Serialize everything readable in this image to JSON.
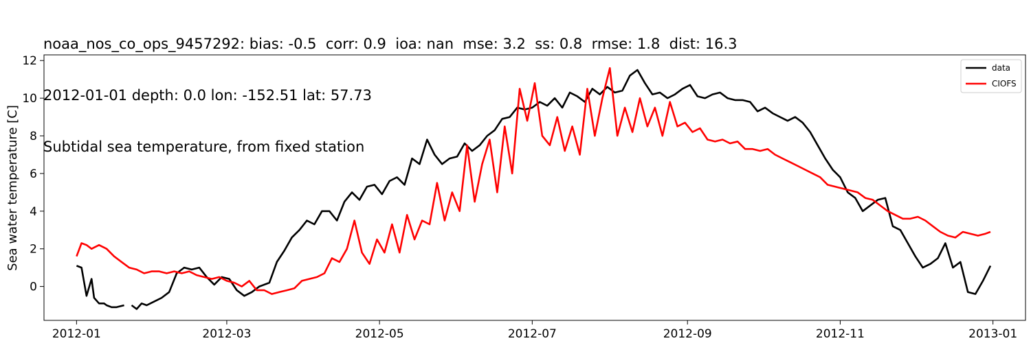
{
  "title_lines": [
    "noaa_nos_co_ops_9457292: bias: -0.5  corr: 0.9  ioa: nan  mse: 3.2  ss: 0.8  rmse: 1.8  dist: 16.3",
    "2012-01-01 depth: 0.0 lon: -152.51 lat: 57.73",
    "Subtidal sea temperature, from fixed station"
  ],
  "chart_data": {
    "type": "line",
    "title": "noaa_nos_co_ops_9457292: bias: -0.5  corr: 0.9  ioa: nan  mse: 3.2  ss: 0.8  rmse: 1.8  dist: 16.3",
    "subtitle": "2012-01-01 depth: 0.0 lon: -152.51 lat: 57.73 — Subtidal sea temperature, from fixed station",
    "xlabel": "",
    "ylabel": "Sea water temperature [C]",
    "xlim": [
      "2011-12-19",
      "2013-01-14"
    ],
    "ylim": [
      -1.8,
      12.3
    ],
    "x_ticks": [
      "2012-01",
      "2012-03",
      "2012-05",
      "2012-07",
      "2012-09",
      "2012-11",
      "2013-01"
    ],
    "y_ticks": [
      0,
      2,
      4,
      6,
      8,
      10,
      12
    ],
    "grid": false,
    "legend": {
      "position": "top-right",
      "entries": [
        "data",
        "CIOFS"
      ]
    },
    "series": [
      {
        "name": "data",
        "color": "#000000",
        "x": [
          "2012-01-01",
          "2012-01-03",
          "2012-01-05",
          "2012-01-07",
          "2012-01-08",
          "2012-01-10",
          "2012-01-12",
          "2012-01-13",
          "2012-01-15",
          "2012-01-17",
          "2012-01-20",
          null,
          "2012-01-23",
          "2012-01-25",
          "2012-01-27",
          "2012-01-29",
          "2012-02-01",
          "2012-02-04",
          "2012-02-07",
          "2012-02-10",
          "2012-02-13",
          "2012-02-16",
          "2012-02-19",
          "2012-02-22",
          "2012-02-25",
          "2012-02-28",
          "2012-03-02",
          "2012-03-05",
          "2012-03-08",
          "2012-03-11",
          "2012-03-14",
          "2012-03-18",
          "2012-03-21",
          "2012-03-24",
          "2012-03-27",
          "2012-03-30",
          "2012-04-02",
          "2012-04-05",
          "2012-04-08",
          "2012-04-11",
          "2012-04-14",
          "2012-04-17",
          "2012-04-20",
          "2012-04-23",
          "2012-04-26",
          "2012-04-29",
          "2012-05-02",
          "2012-05-05",
          "2012-05-08",
          "2012-05-11",
          "2012-05-14",
          "2012-05-17",
          "2012-05-20",
          "2012-05-23",
          "2012-05-26",
          "2012-05-29",
          "2012-06-01",
          "2012-06-04",
          "2012-06-07",
          "2012-06-10",
          "2012-06-13",
          "2012-06-16",
          "2012-06-19",
          "2012-06-22",
          "2012-06-25",
          "2012-06-28",
          "2012-07-01",
          "2012-07-04",
          "2012-07-07",
          "2012-07-10",
          "2012-07-13",
          "2012-07-16",
          "2012-07-19",
          "2012-07-22",
          "2012-07-25",
          "2012-07-28",
          "2012-07-31",
          "2012-08-03",
          "2012-08-06",
          "2012-08-09",
          "2012-08-12",
          "2012-08-15",
          "2012-08-18",
          "2012-08-21",
          "2012-08-24",
          "2012-08-27",
          "2012-08-30",
          "2012-09-02",
          "2012-09-05",
          "2012-09-08",
          "2012-09-11",
          "2012-09-14",
          "2012-09-17",
          "2012-09-20",
          "2012-09-23",
          "2012-09-26",
          "2012-09-29",
          "2012-10-02",
          "2012-10-05",
          "2012-10-08",
          "2012-10-11",
          "2012-10-14",
          "2012-10-17",
          "2012-10-20",
          "2012-10-23",
          "2012-10-26",
          "2012-10-29",
          "2012-11-01",
          "2012-11-04",
          "2012-11-07",
          "2012-11-10",
          "2012-11-13",
          "2012-11-16",
          "2012-11-19",
          "2012-11-22",
          "2012-11-25",
          "2012-11-28",
          "2012-12-01",
          "2012-12-04",
          "2012-12-07",
          "2012-12-10",
          "2012-12-13",
          "2012-12-16",
          "2012-12-19",
          "2012-12-22",
          "2012-12-25",
          "2012-12-28",
          "2012-12-31"
        ],
        "y": [
          1.1,
          1.0,
          -0.5,
          0.4,
          -0.6,
          -0.9,
          -0.9,
          -1.0,
          -1.1,
          -1.1,
          -1.0,
          null,
          -1.0,
          -1.2,
          -0.9,
          -1.0,
          -0.8,
          -0.6,
          -0.3,
          0.7,
          1.0,
          0.9,
          1.0,
          0.5,
          0.1,
          0.5,
          0.4,
          -0.2,
          -0.5,
          -0.3,
          0.0,
          0.2,
          1.3,
          1.9,
          2.6,
          3.0,
          3.5,
          3.3,
          4.0,
          4.0,
          3.5,
          4.5,
          5.0,
          4.6,
          5.3,
          5.4,
          4.9,
          5.6,
          5.8,
          5.4,
          6.8,
          6.5,
          7.8,
          7.0,
          6.5,
          6.8,
          6.9,
          7.6,
          7.2,
          7.5,
          8.0,
          8.3,
          8.9,
          9.0,
          9.5,
          9.4,
          9.5,
          9.8,
          9.6,
          10.0,
          9.5,
          10.3,
          10.1,
          9.8,
          10.5,
          10.2,
          10.6,
          10.3,
          10.4,
          11.2,
          11.5,
          10.8,
          10.2,
          10.3,
          10.0,
          10.2,
          10.5,
          10.7,
          10.1,
          10.0,
          10.2,
          10.3,
          10.0,
          9.9,
          9.9,
          9.8,
          9.3,
          9.5,
          9.2,
          9.0,
          8.8,
          9.0,
          8.7,
          8.2,
          7.5,
          6.8,
          6.2,
          5.8,
          5.0,
          4.7,
          4.0,
          4.3,
          4.6,
          4.7,
          3.2,
          3.0,
          2.3,
          1.6,
          1.0,
          1.2,
          1.5,
          2.3,
          1.0,
          1.3,
          -0.3,
          -0.4,
          0.3,
          1.1
        ]
      },
      {
        "name": "CIOFS",
        "color": "#ff0000",
        "x": [
          "2012-01-01",
          "2012-01-03",
          "2012-01-05",
          "2012-01-07",
          "2012-01-10",
          "2012-01-13",
          "2012-01-16",
          "2012-01-19",
          "2012-01-22",
          "2012-01-25",
          "2012-01-28",
          "2012-01-31",
          "2012-02-03",
          "2012-02-06",
          "2012-02-09",
          "2012-02-12",
          "2012-02-15",
          "2012-02-18",
          "2012-02-21",
          "2012-02-24",
          "2012-02-27",
          "2012-03-01",
          "2012-03-04",
          "2012-03-07",
          "2012-03-10",
          "2012-03-13",
          "2012-03-16",
          "2012-03-19",
          "2012-03-22",
          "2012-03-25",
          "2012-03-28",
          "2012-03-31",
          "2012-04-03",
          "2012-04-06",
          "2012-04-09",
          "2012-04-12",
          "2012-04-15",
          "2012-04-18",
          "2012-04-21",
          "2012-04-24",
          "2012-04-27",
          "2012-04-30",
          "2012-05-03",
          "2012-05-06",
          "2012-05-09",
          "2012-05-12",
          "2012-05-15",
          "2012-05-18",
          "2012-05-21",
          "2012-05-24",
          "2012-05-27",
          "2012-05-30",
          "2012-06-02",
          "2012-06-05",
          "2012-06-08",
          "2012-06-11",
          "2012-06-14",
          "2012-06-17",
          "2012-06-20",
          "2012-06-23",
          "2012-06-26",
          "2012-06-29",
          "2012-07-02",
          "2012-07-05",
          "2012-07-08",
          "2012-07-11",
          "2012-07-14",
          "2012-07-17",
          "2012-07-20",
          "2012-07-23",
          "2012-07-26",
          "2012-07-29",
          "2012-08-01",
          "2012-08-04",
          "2012-08-07",
          "2012-08-10",
          "2012-08-13",
          "2012-08-16",
          "2012-08-19",
          "2012-08-22",
          "2012-08-25",
          "2012-08-28",
          "2012-08-31",
          "2012-09-03",
          "2012-09-06",
          "2012-09-09",
          "2012-09-12",
          "2012-09-15",
          "2012-09-18",
          "2012-09-21",
          "2012-09-24",
          "2012-09-27",
          "2012-09-30",
          "2012-10-03",
          "2012-10-06",
          "2012-10-09",
          "2012-10-12",
          "2012-10-15",
          "2012-10-18",
          "2012-10-21",
          "2012-10-24",
          "2012-10-27",
          "2012-10-30",
          "2012-11-02",
          "2012-11-05",
          "2012-11-08",
          "2012-11-11",
          "2012-11-14",
          "2012-11-17",
          "2012-11-20",
          "2012-11-23",
          "2012-11-26",
          "2012-11-29",
          "2012-12-02",
          "2012-12-05",
          "2012-12-08",
          "2012-12-11",
          "2012-12-14",
          "2012-12-17",
          "2012-12-20",
          "2012-12-23",
          "2012-12-26",
          "2012-12-29",
          "2012-12-31"
        ],
        "y": [
          1.6,
          2.3,
          2.2,
          2.0,
          2.2,
          2.0,
          1.6,
          1.3,
          1.0,
          0.9,
          0.7,
          0.8,
          0.8,
          0.7,
          0.8,
          0.7,
          0.8,
          0.6,
          0.5,
          0.4,
          0.5,
          0.3,
          0.2,
          0.0,
          0.3,
          -0.2,
          -0.2,
          -0.4,
          -0.3,
          -0.2,
          -0.1,
          0.3,
          0.4,
          0.5,
          0.7,
          1.5,
          1.3,
          2.0,
          3.5,
          1.8,
          1.2,
          2.5,
          1.8,
          3.3,
          1.8,
          3.8,
          2.5,
          3.5,
          3.3,
          5.5,
          3.5,
          5.0,
          4.0,
          7.5,
          4.5,
          6.5,
          7.8,
          5.0,
          8.5,
          6.0,
          10.5,
          8.8,
          10.8,
          8.0,
          7.5,
          9.0,
          7.2,
          8.5,
          7.0,
          10.5,
          8.0,
          10.0,
          11.6,
          8.0,
          9.5,
          8.2,
          10.0,
          8.5,
          9.5,
          8.0,
          9.8,
          8.5,
          8.7,
          8.2,
          8.4,
          7.8,
          7.7,
          7.8,
          7.6,
          7.7,
          7.3,
          7.3,
          7.2,
          7.3,
          7.0,
          6.8,
          6.6,
          6.4,
          6.2,
          6.0,
          5.8,
          5.4,
          5.3,
          5.2,
          5.1,
          5.0,
          4.7,
          4.6,
          4.3,
          4.0,
          3.8,
          3.6,
          3.6,
          3.7,
          3.5,
          3.2,
          2.9,
          2.7,
          2.6,
          2.9,
          2.8,
          2.7,
          2.8,
          2.9
        ]
      }
    ]
  }
}
